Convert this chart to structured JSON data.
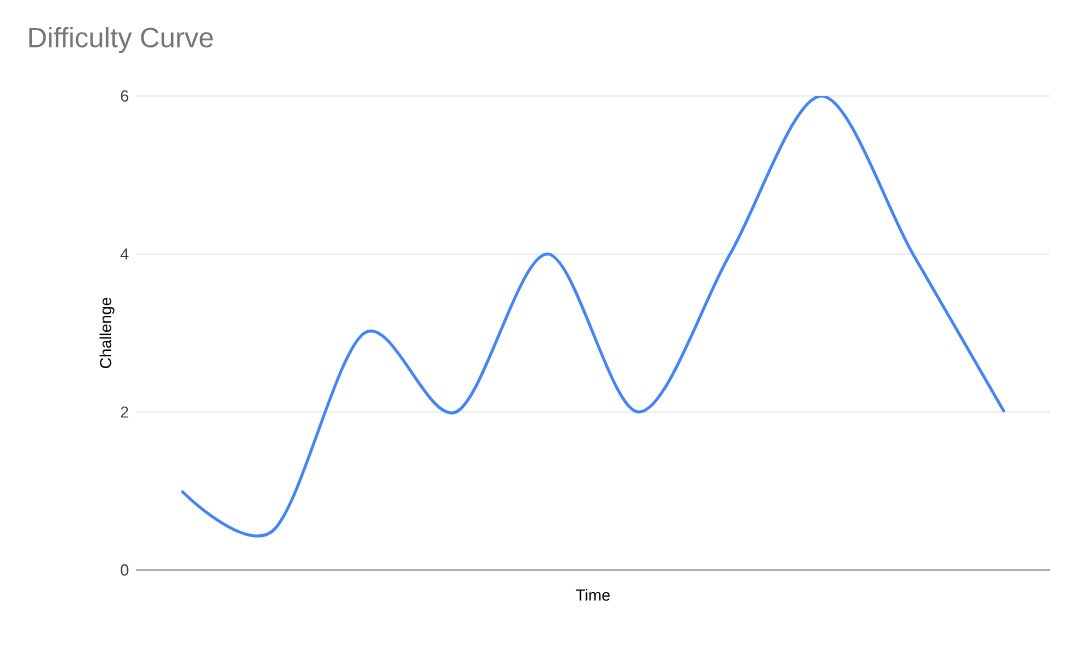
{
  "chart_data": {
    "type": "line",
    "title": "Difficulty Curve",
    "xlabel": "Time",
    "ylabel": "Challenge",
    "categories": [
      null,
      null,
      null,
      null,
      null,
      null,
      null,
      null,
      null,
      null
    ],
    "series": [
      {
        "color": "#4285f4",
        "values": [
          1,
          0.5,
          3,
          2,
          4,
          2,
          4,
          6,
          4,
          2
        ]
      }
    ],
    "ylim": [
      0,
      6
    ],
    "yticks": [
      0,
      2,
      4,
      6
    ],
    "grid": "y",
    "marker": "none",
    "line_style": "solid"
  }
}
